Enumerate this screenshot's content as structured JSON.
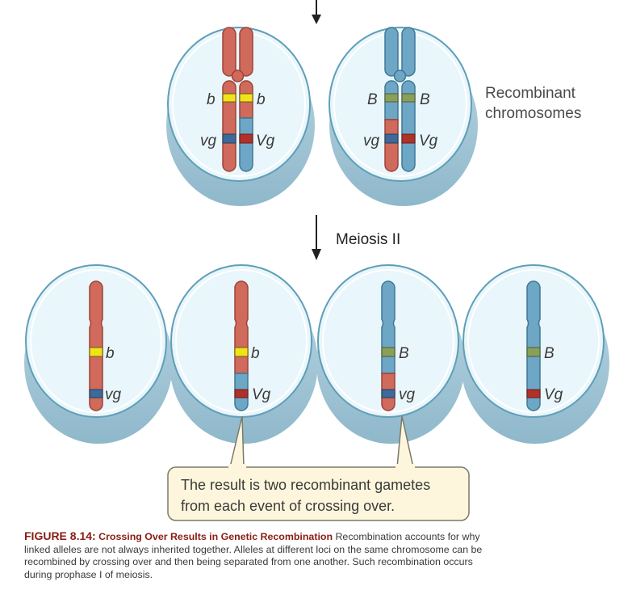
{
  "figure": {
    "number": "FIGURE 8.14:",
    "title": "Crossing Over Results in Genetic Recombination",
    "body": " Recombination accounts for why linked alleles are not always inherited together. Alleles at different loci on the same chromosome can be recombined by crossing over and then being separated from one another. Such recombination occurs during prophase I of meiosis."
  },
  "labels": {
    "recombinant_line1": "Recombinant",
    "recombinant_line2": "chromosomes",
    "stage": "Meiosis II",
    "callout_line1": "The result is two recombinant gametes",
    "callout_line2": "from each event of crossing over."
  },
  "alleles": {
    "cell1": {
      "left_top": "b",
      "right_top": "b",
      "left_bottom": "vg",
      "right_bottom": "Vg"
    },
    "cell2": {
      "left_top": "B",
      "right_top": "B",
      "left_bottom": "vg",
      "right_bottom": "Vg"
    },
    "gamete1": {
      "top": "b",
      "bottom": "vg"
    },
    "gamete2": {
      "top": "b",
      "bottom": "Vg"
    },
    "gamete3": {
      "top": "B",
      "bottom": "vg"
    },
    "gamete4": {
      "top": "B",
      "bottom": "Vg"
    }
  },
  "colors": {
    "red_chromosome": "#cf6a5c",
    "blue_chromosome": "#6ea6c6",
    "yellow_band": "#f2e21a",
    "green_band": "#8aa05a",
    "dark_blue_band": "#3c6a9a",
    "dark_red_band": "#b0312a",
    "cell_fill": "#e9f6fb",
    "cell_shadow": "#a8cad8",
    "caption_accent": "#8a1c14",
    "callout_fill": "#fdf6dc"
  }
}
